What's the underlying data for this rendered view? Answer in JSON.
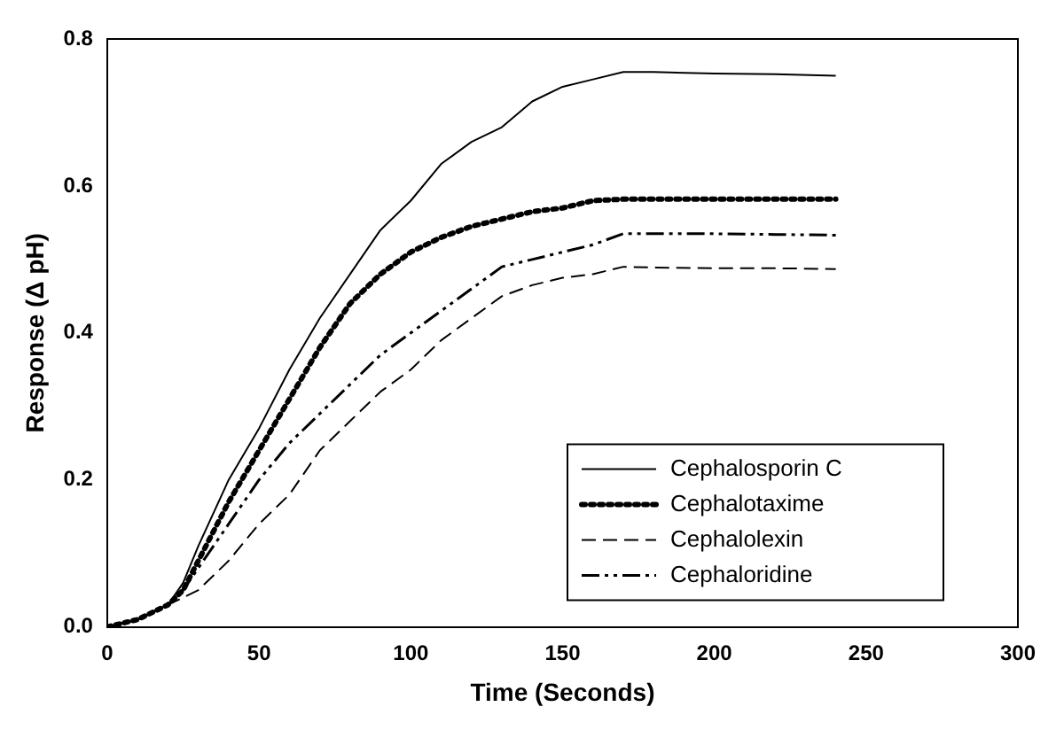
{
  "chart_data": {
    "type": "line",
    "xlabel": "Time (Seconds)",
    "ylabel": "Response (Δ pH)",
    "xlim": [
      0,
      300
    ],
    "xticks": [
      0,
      50,
      100,
      150,
      200,
      250,
      300
    ],
    "ylim": [
      0,
      0.8
    ],
    "yticks": [
      {
        "value": 0,
        "label": "0.0"
      },
      {
        "value": 0.2,
        "label": "0.2"
      },
      {
        "value": 0.4,
        "label": "0.4"
      },
      {
        "value": 0.6,
        "label": "0.6"
      },
      {
        "value": 0.8,
        "label": "0.8"
      }
    ],
    "grid": false,
    "legend": "bottom right",
    "marker": "none",
    "x": [
      0,
      10,
      20,
      25,
      30,
      40,
      50,
      60,
      70,
      80,
      90,
      100,
      110,
      120,
      130,
      140,
      150,
      160,
      170,
      180,
      200,
      220,
      240
    ],
    "series": [
      {
        "name": "Cephalosporin C",
        "color": "#000000",
        "line_style": "solid",
        "values": [
          0,
          0.01,
          0.03,
          0.06,
          0.11,
          0.2,
          0.27,
          0.35,
          0.42,
          0.48,
          0.54,
          0.58,
          0.63,
          0.66,
          0.68,
          0.715,
          0.735,
          0.745,
          0.755,
          0.755,
          0.753,
          0.752,
          0.75
        ]
      },
      {
        "name": "Cephalotaxime",
        "color": "#000000",
        "line_style": "dotted",
        "values": [
          0,
          0.01,
          0.03,
          0.05,
          0.09,
          0.17,
          0.24,
          0.31,
          0.38,
          0.44,
          0.48,
          0.51,
          0.53,
          0.545,
          0.555,
          0.565,
          0.57,
          0.58,
          0.582,
          0.582,
          0.582,
          0.582,
          0.582
        ]
      },
      {
        "name": "Cephalolexin",
        "color": "#000000",
        "line_style": "dashed",
        "values": [
          0,
          0.01,
          0.03,
          0.04,
          0.05,
          0.09,
          0.14,
          0.18,
          0.24,
          0.28,
          0.32,
          0.35,
          0.39,
          0.42,
          0.45,
          0.465,
          0.475,
          0.48,
          0.49,
          0.489,
          0.488,
          0.488,
          0.487
        ]
      },
      {
        "name": "Cephaloridine",
        "color": "#000000",
        "line_style": "dashdot",
        "values": [
          0,
          0.01,
          0.03,
          0.05,
          0.08,
          0.14,
          0.2,
          0.25,
          0.29,
          0.33,
          0.37,
          0.4,
          0.43,
          0.46,
          0.49,
          0.5,
          0.51,
          0.52,
          0.535,
          0.535,
          0.535,
          0.534,
          0.533
        ]
      }
    ]
  }
}
